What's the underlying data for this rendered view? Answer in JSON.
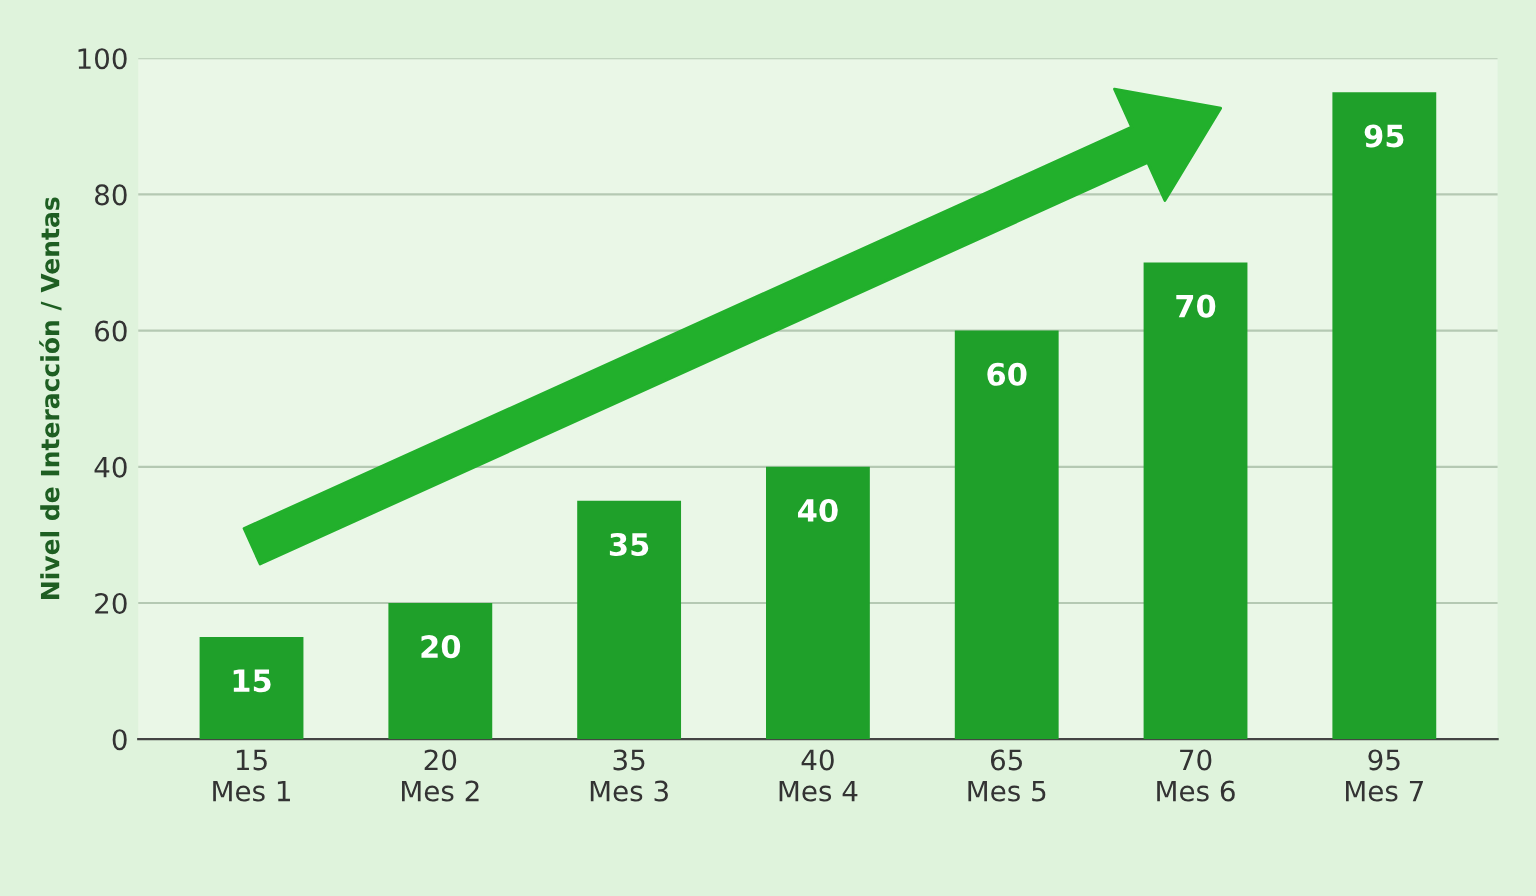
{
  "chart_data": {
    "type": "bar",
    "ylabel": "Nivel de Interacción / Ventas",
    "categories": [
      "15\nMes 1",
      "20\nMes 2",
      "35\nMes 3",
      "40\nMes 4",
      "65\nMes 5",
      "70\nMes 6",
      "95\nMes 7"
    ],
    "values": [
      15,
      20,
      35,
      40,
      60,
      70,
      95
    ],
    "color": "#1fa02a",
    "ylim": [
      0,
      100
    ],
    "yticks": [
      0,
      20,
      40,
      60,
      80,
      100
    ],
    "grid": "y",
    "data_labels": true
  }
}
